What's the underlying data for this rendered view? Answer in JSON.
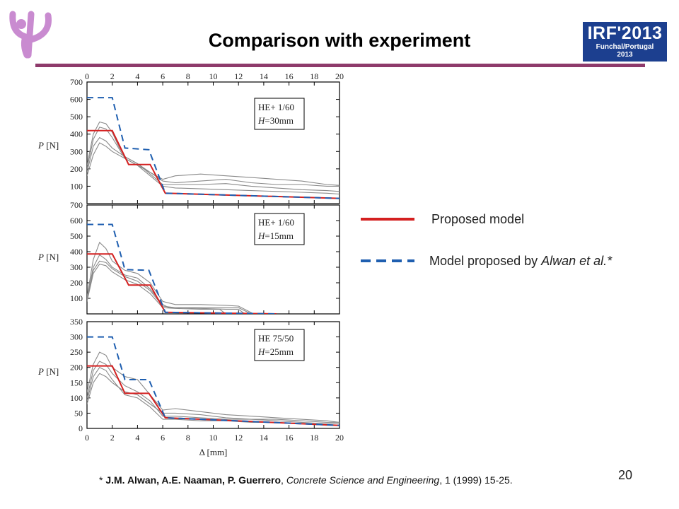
{
  "slide": {
    "title": "Comparison with experiment",
    "page_number": "20",
    "accent_color": "#8e3a6b",
    "logo_left_icon": "psi-logo-icon",
    "logo_right": {
      "text": "IRF'2013",
      "line2": "Funchal/Portugal",
      "line3": "2013",
      "color": "#1c3f8f"
    }
  },
  "legend": {
    "proposed": {
      "label": "Proposed model",
      "color": "#d42020",
      "style": "solid"
    },
    "alwan_prefix": "Model proposed by ",
    "alwan_name": "Alwan et al.*",
    "alwan_color": "#1f5fb0",
    "alwan_style": "dashed"
  },
  "reference": {
    "prefix": "* ",
    "authors": "J.M. Alwan, A.E. Naaman, P. Guerrero",
    "sep": ", ",
    "journal": "Concrete Science and Engineering",
    "rest": ", 1 (1999) 15-25."
  },
  "chart_data": [
    {
      "type": "line",
      "annotation_line1": "HE+ 1/60",
      "annotation_h_label": "H",
      "annotation_h_value": "=30mm",
      "xlabel": "Δ [mm]",
      "ylabel_var": "P",
      "ylabel_unit": " [N]",
      "xlim": [
        0,
        20
      ],
      "ylim": [
        0,
        700
      ],
      "xticks": [
        0,
        2,
        4,
        6,
        8,
        10,
        12,
        14,
        16,
        18,
        20
      ],
      "yticks": [
        100,
        200,
        300,
        400,
        500,
        600,
        700
      ],
      "x_tick_labels_on": "top",
      "series": [
        {
          "role": "proposed",
          "color": "#d42020",
          "x": [
            0,
            2,
            3.3,
            5,
            6.2,
            20
          ],
          "y": [
            420,
            420,
            225,
            225,
            60,
            30
          ]
        },
        {
          "role": "alwan",
          "color": "#1f5fb0",
          "x": [
            0,
            2,
            3,
            4.9,
            6.2,
            20
          ],
          "y": [
            610,
            610,
            320,
            310,
            60,
            30
          ]
        }
      ],
      "experiments": [
        {
          "x": [
            0,
            0.5,
            1,
            1.5,
            2,
            2.5,
            3,
            4,
            5,
            6,
            7,
            9,
            11,
            13,
            15,
            17,
            19,
            20
          ],
          "y": [
            220,
            400,
            470,
            460,
            410,
            330,
            270,
            230,
            180,
            130,
            120,
            130,
            140,
            120,
            110,
            110,
            100,
            100
          ]
        },
        {
          "x": [
            0,
            0.5,
            1,
            1.5,
            2,
            2.5,
            3,
            4,
            5,
            6,
            7,
            9,
            11,
            13,
            15,
            17,
            19,
            20
          ],
          "y": [
            200,
            370,
            440,
            430,
            380,
            320,
            260,
            220,
            180,
            140,
            160,
            170,
            160,
            150,
            140,
            130,
            110,
            105
          ]
        },
        {
          "x": [
            0,
            0.5,
            1,
            1.5,
            2,
            3,
            4,
            5,
            6,
            7,
            9,
            11,
            13,
            15,
            17,
            19,
            20
          ],
          "y": [
            180,
            330,
            380,
            360,
            320,
            270,
            230,
            170,
            110,
            110,
            110,
            115,
            100,
            90,
            80,
            75,
            70
          ]
        },
        {
          "x": [
            0,
            0.5,
            1,
            1.5,
            2,
            3,
            4,
            5,
            6,
            7,
            9,
            11,
            13,
            15,
            17,
            19,
            20
          ],
          "y": [
            160,
            280,
            350,
            330,
            300,
            260,
            220,
            160,
            100,
            90,
            85,
            80,
            75,
            70,
            65,
            60,
            55
          ]
        }
      ]
    },
    {
      "type": "line",
      "annotation_line1": "HE+ 1/60",
      "annotation_h_label": "H",
      "annotation_h_value": "=15mm",
      "xlabel": "Δ [mm]",
      "ylabel_var": "P",
      "ylabel_unit": " [N]",
      "xlim": [
        0,
        20
      ],
      "ylim": [
        0,
        700
      ],
      "yticks": [
        100,
        200,
        300,
        400,
        500,
        600,
        700
      ],
      "series": [
        {
          "role": "proposed",
          "color": "#d42020",
          "x": [
            0,
            2,
            3.3,
            5,
            6.2,
            15
          ],
          "y": [
            385,
            385,
            185,
            185,
            10,
            0
          ]
        },
        {
          "role": "alwan",
          "color": "#1f5fb0",
          "x": [
            0,
            2,
            3,
            4.9,
            6.2,
            15
          ],
          "y": [
            575,
            575,
            285,
            280,
            10,
            0
          ]
        }
      ],
      "experiments": [
        {
          "x": [
            0,
            0.5,
            1,
            1.5,
            2,
            3,
            4,
            5,
            6,
            6.5,
            8,
            10,
            12,
            13
          ],
          "y": [
            100,
            300,
            380,
            350,
            300,
            250,
            230,
            160,
            60,
            40,
            40,
            40,
            40,
            0
          ]
        },
        {
          "x": [
            0,
            0.5,
            1,
            1.5,
            2,
            3,
            4,
            5,
            6,
            7,
            9,
            11,
            12,
            12.5
          ],
          "y": [
            90,
            280,
            340,
            330,
            290,
            240,
            210,
            150,
            50,
            40,
            35,
            30,
            30,
            0
          ]
        },
        {
          "x": [
            0,
            0.5,
            1,
            1.5,
            2,
            3,
            4,
            5,
            6,
            7,
            9,
            10.5,
            11
          ],
          "y": [
            80,
            260,
            320,
            310,
            270,
            220,
            190,
            130,
            40,
            35,
            30,
            30,
            0
          ]
        },
        {
          "x": [
            0,
            0.5,
            1,
            1.5,
            2,
            3,
            4,
            5,
            6,
            7,
            9,
            11,
            12,
            13.2
          ],
          "y": [
            110,
            350,
            460,
            420,
            340,
            280,
            260,
            200,
            80,
            60,
            60,
            55,
            50,
            0
          ]
        }
      ]
    },
    {
      "type": "line",
      "annotation_line1": "HE 75/50",
      "annotation_h_label": "H",
      "annotation_h_value": "=25mm",
      "xlabel": "Δ [mm]",
      "ylabel_var": "P",
      "ylabel_unit": " [N]",
      "xlim": [
        0,
        20
      ],
      "ylim": [
        0,
        350
      ],
      "xticks": [
        0,
        2,
        4,
        6,
        8,
        10,
        12,
        14,
        16,
        18,
        20
      ],
      "yticks": [
        0,
        50,
        100,
        150,
        200,
        250,
        300,
        350
      ],
      "x_tick_labels_on": "bottom",
      "series": [
        {
          "role": "proposed",
          "color": "#d42020",
          "x": [
            0,
            2,
            3,
            4.9,
            6.2,
            20
          ],
          "y": [
            205,
            205,
            115,
            115,
            35,
            10
          ]
        },
        {
          "role": "alwan",
          "color": "#1f5fb0",
          "x": [
            0,
            2,
            3,
            4.9,
            6.2,
            20
          ],
          "y": [
            300,
            300,
            160,
            160,
            35,
            10
          ]
        }
      ],
      "experiments": [
        {
          "x": [
            0,
            0.5,
            1,
            1.5,
            2,
            3,
            4,
            5,
            6,
            7,
            9,
            11,
            13,
            15,
            17,
            19,
            20
          ],
          "y": [
            120,
            210,
            250,
            240,
            200,
            170,
            160,
            110,
            60,
            65,
            55,
            45,
            40,
            35,
            30,
            25,
            20
          ]
        },
        {
          "x": [
            0,
            0.5,
            1,
            1.5,
            2,
            3,
            4,
            5,
            6,
            7,
            9,
            11,
            13,
            15,
            17,
            19,
            20
          ],
          "y": [
            100,
            190,
            220,
            210,
            180,
            140,
            120,
            90,
            40,
            40,
            35,
            30,
            30,
            25,
            20,
            15,
            15
          ]
        },
        {
          "x": [
            0,
            0.5,
            1,
            1.5,
            2,
            3,
            4,
            5,
            6,
            7,
            9,
            11,
            13,
            15,
            17,
            19,
            20
          ],
          "y": [
            90,
            170,
            200,
            190,
            160,
            110,
            100,
            70,
            30,
            30,
            25,
            25,
            20,
            20,
            15,
            10,
            10
          ]
        },
        {
          "x": [
            0,
            0.5,
            1,
            1.5,
            2,
            3,
            4,
            5,
            6,
            7,
            9,
            11,
            13,
            15,
            17,
            19,
            20
          ],
          "y": [
            80,
            150,
            180,
            170,
            150,
            120,
            110,
            80,
            50,
            50,
            45,
            35,
            30,
            30,
            25,
            20,
            20
          ]
        }
      ]
    }
  ]
}
